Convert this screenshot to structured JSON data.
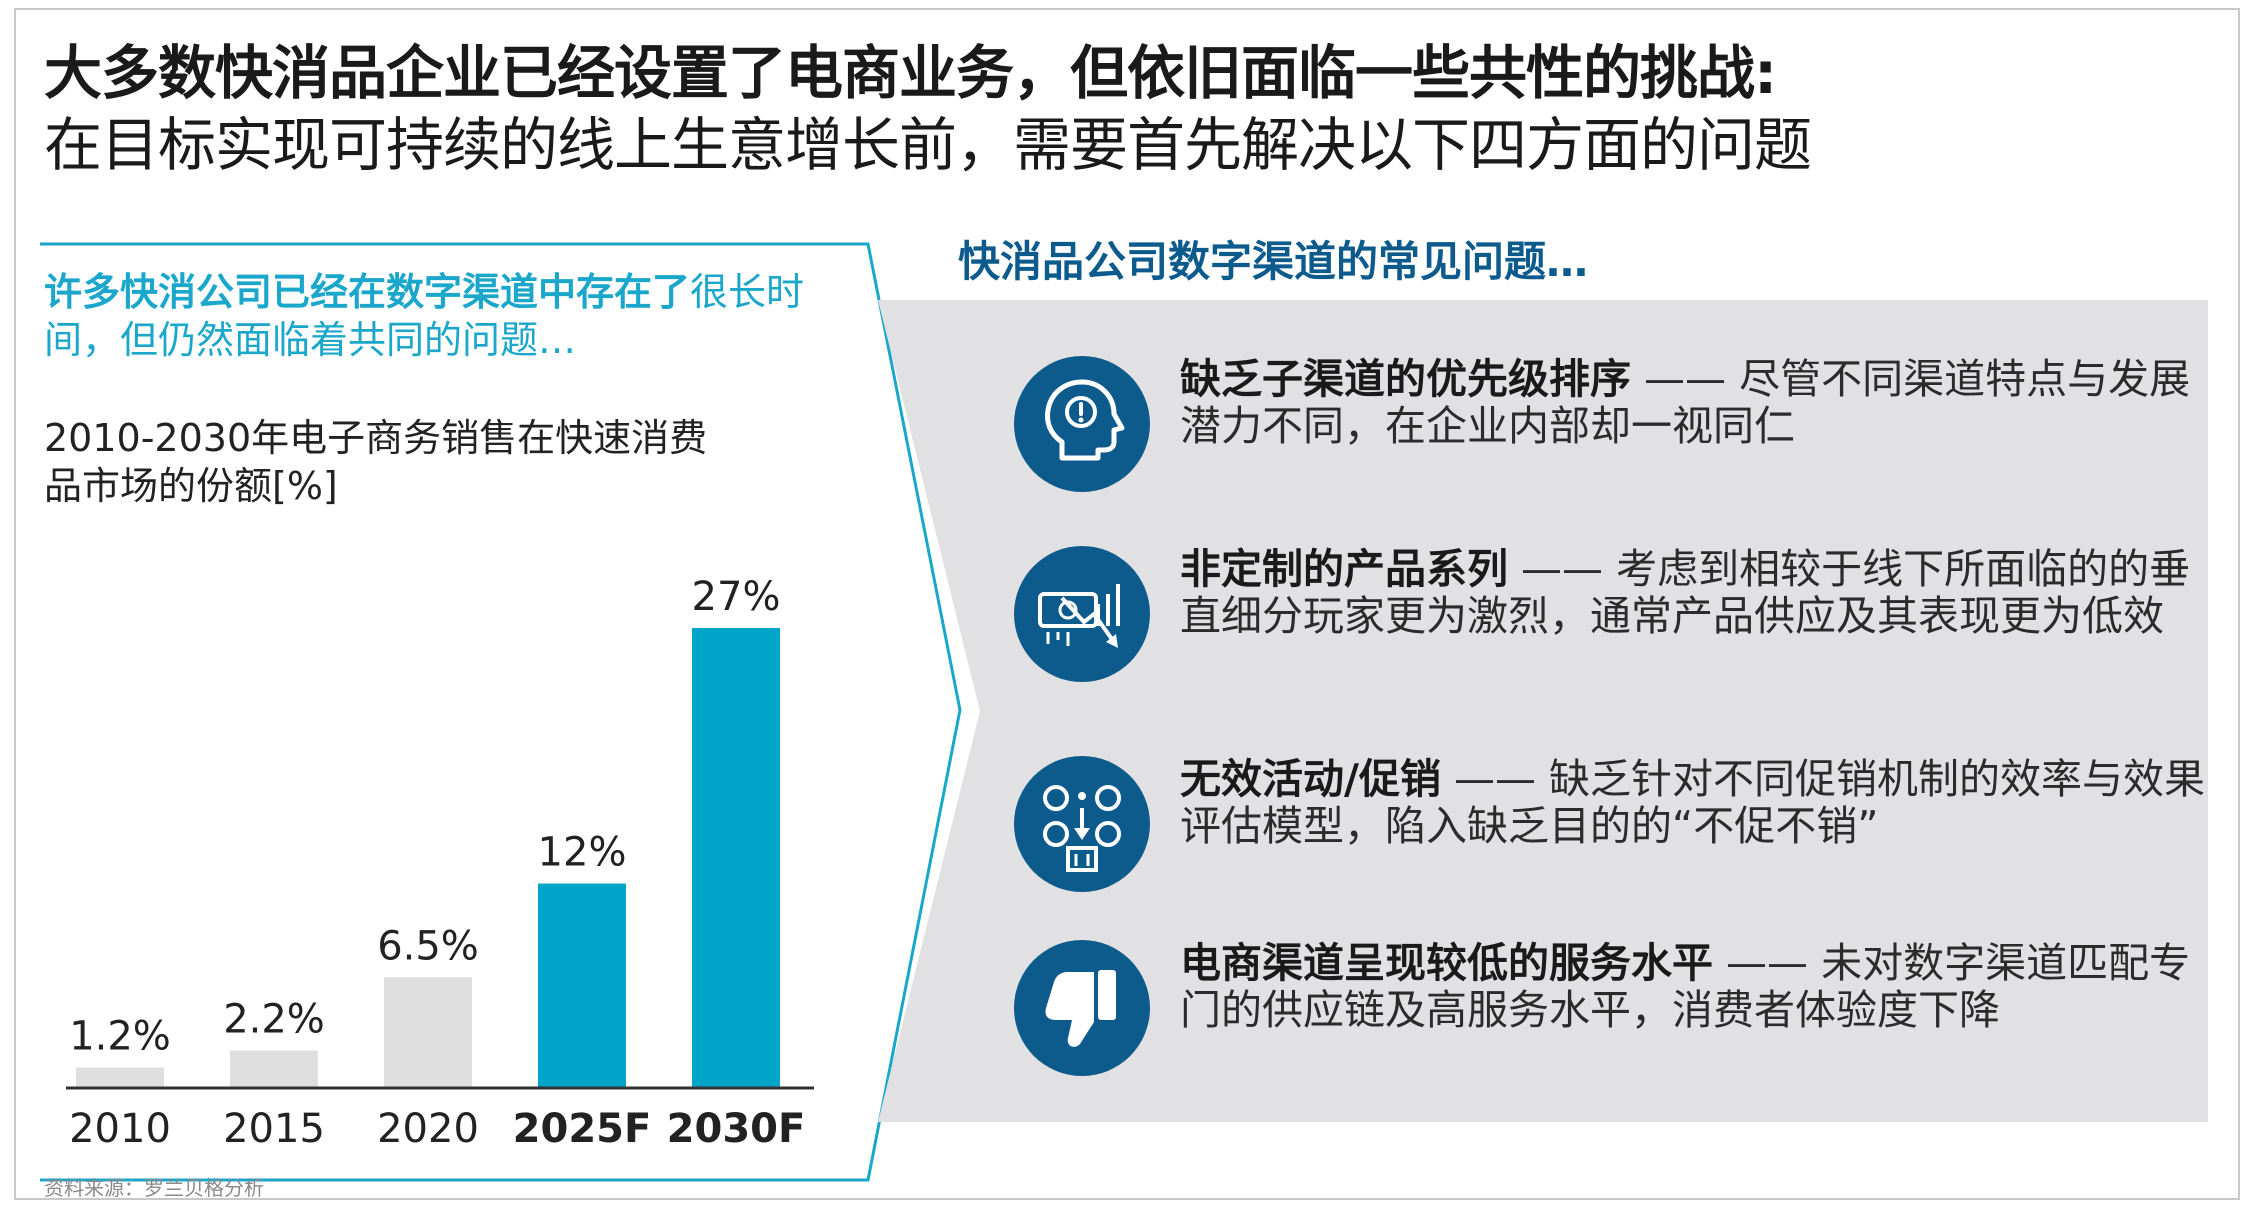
{
  "header": {
    "title_line1": "大多数快消品企业已经设置了电商业务，但依旧面临一些共性的挑战:",
    "title_line2": "在目标实现可持续的线上生意增长前，需要首先解决以下四方面的问题"
  },
  "left_panel": {
    "heading_strong": "许多快消公司已经在数字渠道中存在了",
    "heading_rest": "很长时间，但仍然面临着共同的问题…"
  },
  "chart_data": {
    "type": "bar",
    "title": "2010-2030年电子商务销售在快速消费品市场的份额[%]",
    "categories": [
      "2010",
      "2015",
      "2020",
      "2025F",
      "2030F"
    ],
    "values": [
      1.2,
      2.2,
      6.5,
      12,
      27
    ],
    "data_labels": [
      "1.2%",
      "2.2%",
      "6.5%",
      "12%",
      "27%"
    ],
    "forecast": [
      false,
      false,
      false,
      true,
      true
    ],
    "colors": {
      "actual": "#dededf",
      "forecast": "#00a5c9"
    },
    "ylim": [
      0,
      27
    ],
    "grid": false
  },
  "right_panel": {
    "heading": "快消品公司数字渠道的常见问题…",
    "issues": [
      {
        "icon": "head-question-icon",
        "title": "缺乏子渠道的优先级排序",
        "text": " —— 尽管不同渠道特点与发展潜力不同，在企业内部却一视同仁"
      },
      {
        "icon": "money-decline-icon",
        "title": "非定制的产品系列",
        "text": " —— 考虑到相较于线下所面临的的垂直细分玩家更为激烈，通常产品供应及其表现更为低效"
      },
      {
        "icon": "promotion-icon",
        "title": "无效活动/促销",
        "text": " —— 缺乏针对不同促销机制的效率与效果评估模型，陷入缺乏目的的“不促不销”"
      },
      {
        "icon": "thumbs-down-icon",
        "title": "电商渠道呈现较低的服务水平",
        "text": " —— 未对数字渠道匹配专门的供应链及高服务水平，消费者体验度下降"
      }
    ]
  },
  "footer": {
    "source": "资料来源：罗兰贝格分析"
  }
}
